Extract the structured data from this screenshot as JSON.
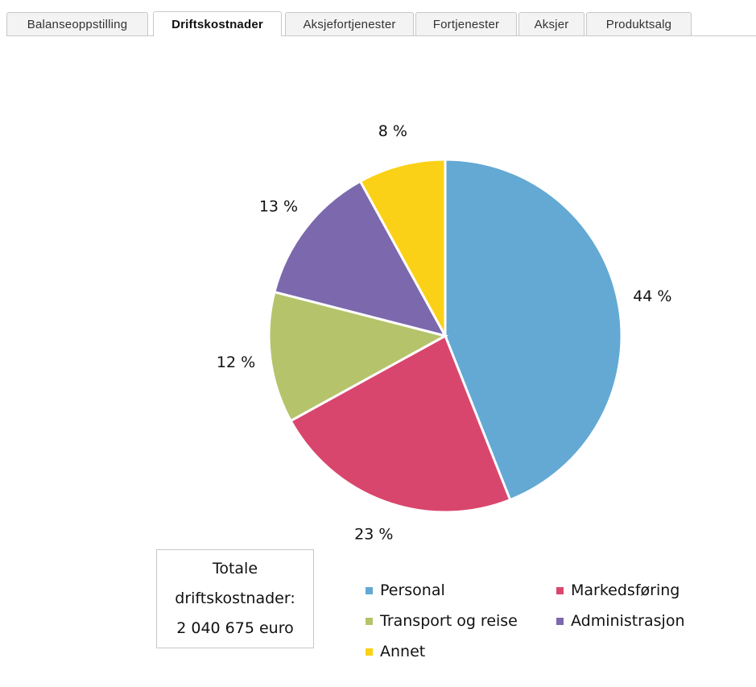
{
  "tabs": [
    {
      "label": "Balanseoppstilling",
      "active": false
    },
    {
      "label": "Driftskostnader",
      "active": true
    },
    {
      "label": "Aksjefortjenester",
      "active": false
    },
    {
      "label": "Fortjenester",
      "active": false
    },
    {
      "label": "Aksjer",
      "active": false
    },
    {
      "label": "Produktsalg",
      "active": false
    }
  ],
  "total_box": {
    "line1": "Totale",
    "line2": "driftskostnader:",
    "line3": "2 040 675 euro"
  },
  "chart_data": {
    "type": "pie",
    "slices": [
      {
        "name": "Personal",
        "value": 44,
        "label": "44 %",
        "color": "#63a9d3"
      },
      {
        "name": "Markedsføring",
        "value": 23,
        "label": "23 %",
        "color": "#d9466d"
      },
      {
        "name": "Transport og reise",
        "value": 12,
        "label": "12 %",
        "color": "#b5c46b"
      },
      {
        "name": "Administrasjon",
        "value": 13,
        "label": "13 %",
        "color": "#7b68ad"
      },
      {
        "name": "Annet",
        "value": 8,
        "label": "8 %",
        "color": "#fbd118"
      }
    ],
    "legend_position": "bottom"
  }
}
